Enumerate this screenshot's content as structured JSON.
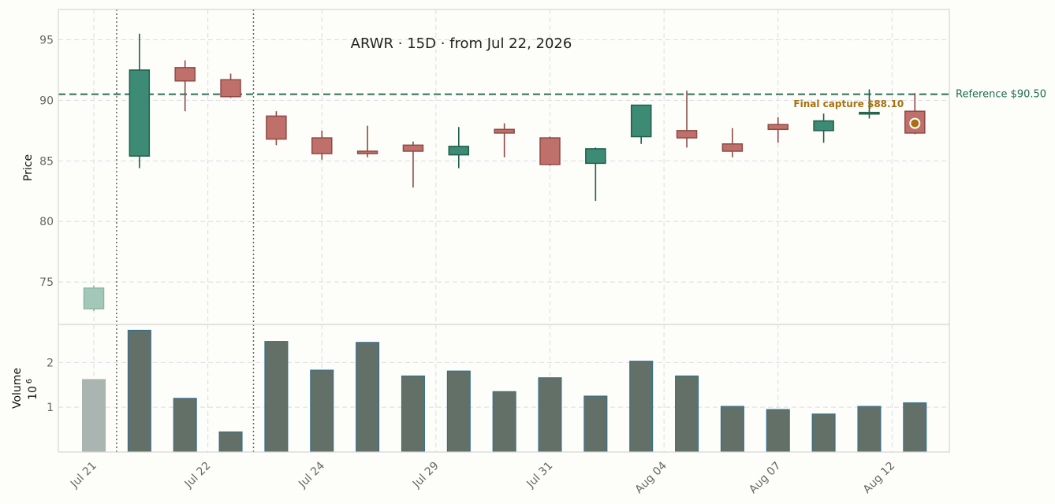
{
  "chart_data": {
    "type": "candlestick",
    "title": "ARWR  ·  15D  ·  from Jul 22, 2026",
    "ticker": "ARWR",
    "ylabel": "Price",
    "volume_label": "Volume",
    "volume_unit": "10^6",
    "volume_unit_base": "10",
    "volume_unit_exp": "6",
    "ylim": [
      71.5,
      97.5
    ],
    "yticks": [
      75,
      80,
      85,
      90,
      95
    ],
    "vol_lim": [
      0,
      2.85
    ],
    "vol_ticks": [
      1,
      2
    ],
    "grid": true,
    "x_tick_labels": [
      {
        "index": 0,
        "label": "Jul 21"
      },
      {
        "index": 2.5,
        "label": "Jul 22"
      },
      {
        "index": 5,
        "label": "Jul 24"
      },
      {
        "index": 7.5,
        "label": "Jul 29"
      },
      {
        "index": 10,
        "label": "Jul 31"
      },
      {
        "index": 12.5,
        "label": "Aug 04"
      },
      {
        "index": 15,
        "label": "Aug 07"
      },
      {
        "index": 17.5,
        "label": "Aug 12"
      }
    ],
    "window_markers": [
      0.5,
      3.5
    ],
    "reference": {
      "value": 90.5,
      "label": "Reference $90.50"
    },
    "final_capture": {
      "index": 18,
      "value": 88.1,
      "label": "Final capture $88.10"
    },
    "candles": [
      {
        "open": 72.8,
        "high": 74.7,
        "low": 72.6,
        "close": 74.5,
        "volume": 1.62,
        "faded": true
      },
      {
        "open": 85.4,
        "high": 95.5,
        "low": 84.4,
        "close": 92.5,
        "volume": 2.72
      },
      {
        "open": 92.7,
        "high": 93.3,
        "low": 89.1,
        "close": 91.6,
        "volume": 1.2
      },
      {
        "open": 91.7,
        "high": 92.2,
        "low": 90.2,
        "close": 90.3,
        "volume": 0.45
      },
      {
        "open": 88.7,
        "high": 89.1,
        "low": 86.3,
        "close": 86.8,
        "volume": 2.47
      },
      {
        "open": 86.9,
        "high": 87.5,
        "low": 85.1,
        "close": 85.6,
        "volume": 1.83
      },
      {
        "open": 85.8,
        "high": 87.9,
        "low": 85.3,
        "close": 85.6,
        "volume": 2.45
      },
      {
        "open": 86.3,
        "high": 86.6,
        "low": 82.8,
        "close": 85.8,
        "volume": 1.7
      },
      {
        "open": 85.5,
        "high": 87.8,
        "low": 84.4,
        "close": 86.2,
        "volume": 1.81
      },
      {
        "open": 87.6,
        "high": 88.1,
        "low": 85.3,
        "close": 87.3,
        "volume": 1.35
      },
      {
        "open": 86.9,
        "high": 87.0,
        "low": 84.6,
        "close": 84.7,
        "volume": 1.66
      },
      {
        "open": 84.8,
        "high": 86.1,
        "low": 81.7,
        "close": 86.0,
        "volume": 1.25
      },
      {
        "open": 87.0,
        "high": 89.6,
        "low": 86.4,
        "close": 89.6,
        "volume": 2.03
      },
      {
        "open": 87.5,
        "high": 90.8,
        "low": 86.1,
        "close": 86.9,
        "volume": 1.7
      },
      {
        "open": 86.4,
        "high": 87.7,
        "low": 85.3,
        "close": 85.8,
        "volume": 1.02
      },
      {
        "open": 88.0,
        "high": 88.6,
        "low": 86.5,
        "close": 87.6,
        "volume": 0.95
      },
      {
        "open": 87.5,
        "high": 88.9,
        "low": 86.5,
        "close": 88.3,
        "volume": 0.85
      },
      {
        "open": 88.9,
        "high": 90.9,
        "low": 88.5,
        "close": 89.0,
        "volume": 1.02
      },
      {
        "open": 89.1,
        "high": 90.6,
        "low": 87.2,
        "close": 87.3,
        "volume": 1.1
      }
    ],
    "colors": {
      "up": "#3d8b74",
      "up_edge": "#1e5e4b",
      "down": "#c0706a",
      "down_edge": "#8f4a45",
      "faded": "#a3c8ba",
      "faded_edge": "#8cb4a5",
      "volume": "#627068",
      "volume_edge": "#2f6d8f",
      "volume_faded": "#aab4b1",
      "reference": "#2f6e5b",
      "final": "#a8700f",
      "grid": "#d9dde6",
      "marker": "#666666"
    }
  }
}
